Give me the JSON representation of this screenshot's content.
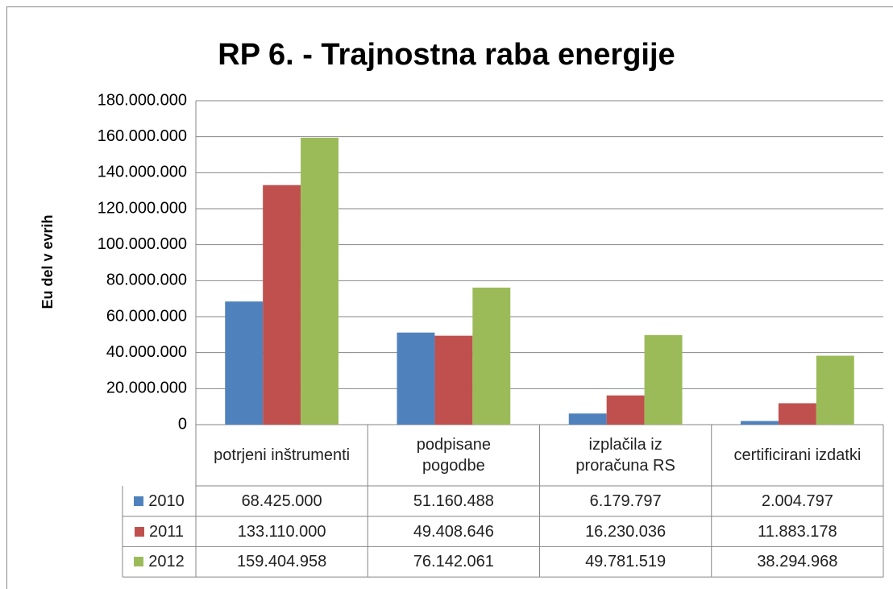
{
  "chart_data": {
    "type": "bar",
    "title": "RP 6. - Trajnostna raba energije",
    "y_label": "Eu del v evrih",
    "categories": [
      "potrjeni inštrumenti",
      "podpisane pogodbe",
      "izplačila iz proračuna RS",
      "certificirani izdatki"
    ],
    "series": [
      {
        "name": "2010",
        "color": "#4f81bd",
        "values": [
          68425000,
          51160488,
          6179797,
          2004797
        ],
        "value_labels": [
          "68.425.000",
          "51.160.488",
          "6.179.797",
          "2.004.797"
        ]
      },
      {
        "name": "2011",
        "color": "#c0504d",
        "values": [
          133110000,
          49408646,
          16230036,
          11883178
        ],
        "value_labels": [
          "133.110.000",
          "49.408.646",
          "16.230.036",
          "11.883.178"
        ]
      },
      {
        "name": "2012",
        "color": "#9bbb59",
        "values": [
          159404958,
          76142061,
          49781519,
          38294968
        ],
        "value_labels": [
          "159.404.958",
          "76.142.061",
          "49.781.519",
          "38.294.968"
        ]
      }
    ],
    "ylim": [
      0,
      180000000
    ],
    "yticks": [
      0,
      {
        "value": 20000000,
        "label": "20.000.000"
      },
      {
        "value": 40000000,
        "label": "40.000.000"
      },
      {
        "value": 60000000,
        "label": "60.000.000"
      },
      {
        "value": 80000000,
        "label": "80.000.000"
      },
      {
        "value": 100000000,
        "label": "100.000.000"
      },
      {
        "value": 120000000,
        "label": "120.000.000"
      },
      {
        "value": 140000000,
        "label": "140.000.000"
      },
      {
        "value": 160000000,
        "label": "160.000.000"
      },
      {
        "value": 180000000,
        "label": "180.000.000"
      }
    ],
    "grid": true,
    "data_table": true
  }
}
